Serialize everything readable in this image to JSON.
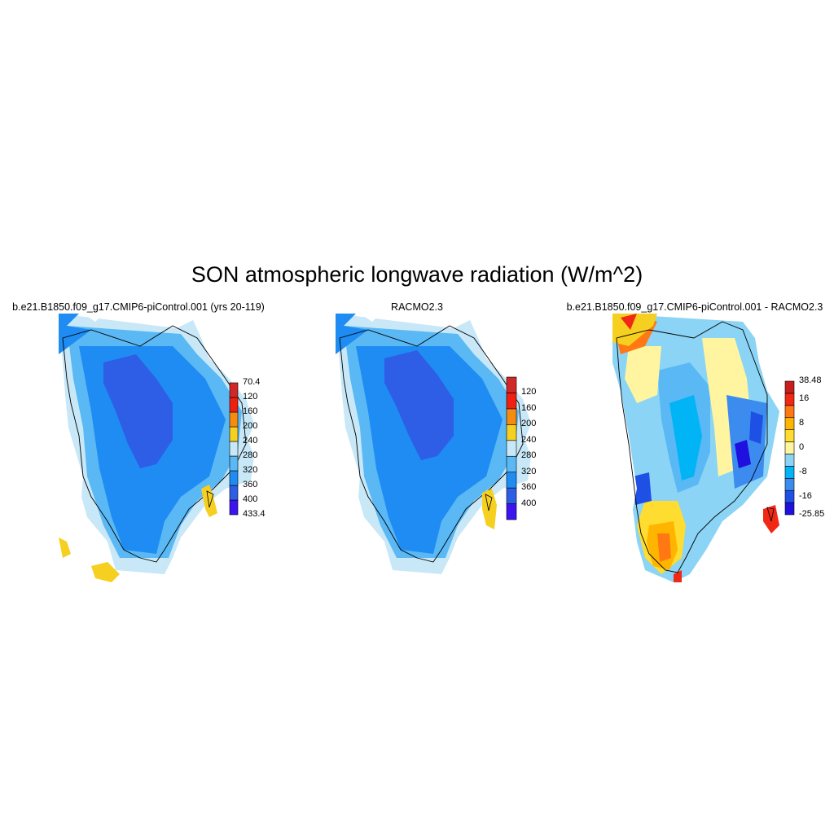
{
  "title": "SON atmospheric longwave radiation (W/m^2)",
  "panels": [
    {
      "title": "b.e21.B1850.f09_g17.CMIP6-piControl.001 (yrs 20-119)",
      "colorbar": {
        "colors": [
          "#3c14f0",
          "#2f5ee6",
          "#1e8cf2",
          "#5ab8f5",
          "#c8e8f8",
          "#f5d020",
          "#f58c10",
          "#f02010",
          "#d02828"
        ],
        "labels": [
          "70.4",
          "120",
          "160",
          "200",
          "240",
          "280",
          "320",
          "360",
          "400",
          "433.4"
        ]
      }
    },
    {
      "title": "RACMO2.3",
      "colorbar": {
        "colors": [
          "#3c14f0",
          "#2f5ee6",
          "#1e8cf2",
          "#5ab8f5",
          "#c8e8f8",
          "#f5d020",
          "#f58c10",
          "#f02010",
          "#d02828"
        ],
        "labels": [
          "120",
          "160",
          "200",
          "240",
          "280",
          "320",
          "360",
          "400"
        ]
      }
    },
    {
      "title": "b.e21.B1850.f09_g17.CMIP6-piControl.001 - RACMO2.3",
      "colorbar": {
        "colors": [
          "#2010e0",
          "#1e50e6",
          "#3c8cf0",
          "#00b4f5",
          "#8cd4f5",
          "#fff5a0",
          "#ffdc30",
          "#ffb400",
          "#ff7814",
          "#f02814",
          "#c81e1e"
        ],
        "labels": [
          "38.48",
          "16",
          "8",
          "0",
          "-8",
          "-16",
          "-25.85"
        ]
      }
    }
  ]
}
